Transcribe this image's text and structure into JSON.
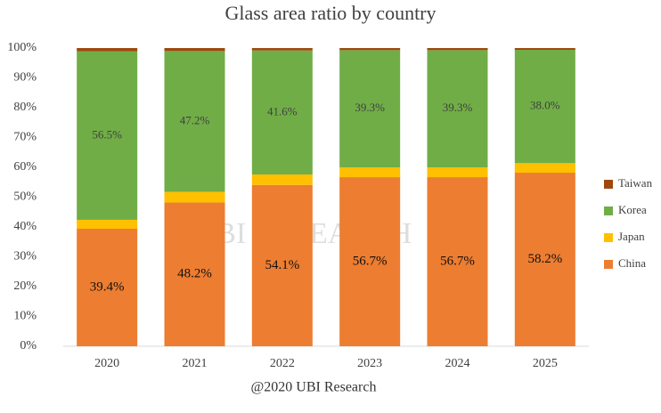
{
  "chart_data": {
    "type": "stacked_bar",
    "title": "Glass area ratio by country",
    "categories": [
      "2020",
      "2021",
      "2022",
      "2023",
      "2024",
      "2025"
    ],
    "series": [
      {
        "name": "China",
        "color": "#ed7d31",
        "values": [
          39.4,
          48.2,
          54.1,
          56.7,
          56.7,
          58.2
        ],
        "value_labels": [
          "39.4%",
          "48.2%",
          "54.1%",
          "56.7%",
          "56.7%",
          "58.2%"
        ]
      },
      {
        "name": "Japan",
        "color": "#ffc000",
        "values": [
          3.0,
          3.6,
          3.5,
          3.3,
          3.3,
          3.2
        ]
      },
      {
        "name": "Korea",
        "color": "#70ad47",
        "values": [
          56.5,
          47.2,
          41.6,
          39.3,
          39.3,
          38.0
        ],
        "value_labels": [
          "56.5%",
          "47.2%",
          "41.6%",
          "39.3%",
          "39.3%",
          "38.0%"
        ]
      },
      {
        "name": "Taiwan",
        "color": "#9e480e",
        "values": [
          1.1,
          1.0,
          0.8,
          0.7,
          0.7,
          0.6
        ]
      }
    ],
    "ylim": [
      0,
      100
    ],
    "yticks": [
      {
        "value": 0,
        "label": "0%"
      },
      {
        "value": 10,
        "label": "10%"
      },
      {
        "value": 20,
        "label": "20%"
      },
      {
        "value": 30,
        "label": "30%"
      },
      {
        "value": 40,
        "label": "40%"
      },
      {
        "value": 50,
        "label": "50%"
      },
      {
        "value": 60,
        "label": "60%"
      },
      {
        "value": 70,
        "label": "70%"
      },
      {
        "value": 80,
        "label": "80%"
      },
      {
        "value": 90,
        "label": "90%"
      },
      {
        "value": 100,
        "label": "100%"
      }
    ],
    "grid": false,
    "legend": "right",
    "watermark": "UBI RESEARCH",
    "source": "@2020 UBI Research"
  }
}
